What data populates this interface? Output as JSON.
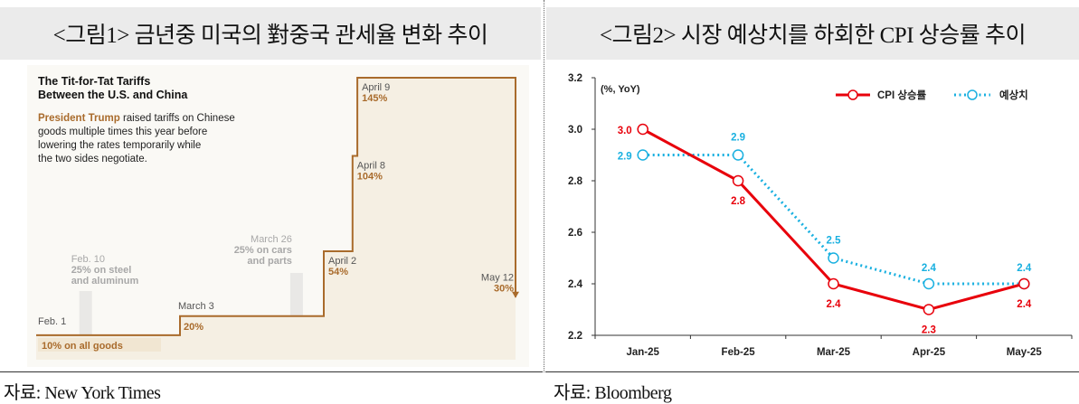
{
  "left_panel": {
    "title": "<그림1> 금년중 미국의 對중국 관세율 변화 추이",
    "source": "자료: New York Times",
    "heading_line1": "The Tit-for-Tat Tariffs",
    "heading_line2": "Between the U.S. and China",
    "desc_highlight": "President Trump",
    "desc_line1_rest": " raised tariffs on Chinese",
    "desc_line2": "goods multiple times this year before",
    "desc_line3": "lowering the rates temporarily while",
    "desc_line4": "the two sides negotiate."
  },
  "right_panel": {
    "title": "<그림2> 시장 예상치를 하회한 CPI 상승률 추이",
    "source": "자료: Bloomberg"
  },
  "colors": {
    "tariff": "#a96b2c",
    "cpi": "#e8000b",
    "forecast": "#19b0e0"
  },
  "chart_data": [
    {
      "type": "line",
      "subtype": "step",
      "unit_label": "",
      "points": [
        {
          "date_label": "Feb. 1",
          "rate_label": "10% on all goods",
          "value": 10,
          "date": "2025-02-01",
          "highlight": true
        },
        {
          "date_label": "Feb. 10",
          "rate_label": "25% on steel",
          "rate_label2": "and aluminum",
          "value": null,
          "date": "2025-02-10",
          "gray": true
        },
        {
          "date_label": "March 3",
          "rate_label": "20%",
          "value": 20,
          "date": "2025-03-03"
        },
        {
          "date_label": "March 26",
          "rate_label": "25% on cars",
          "rate_label2": "and parts",
          "value": null,
          "date": "2025-03-26",
          "gray": true
        },
        {
          "date_label": "April 2",
          "rate_label": "54%",
          "value": 54,
          "date": "2025-04-02"
        },
        {
          "date_label": "April 8",
          "rate_label": "104%",
          "value": 104,
          "date": "2025-04-08"
        },
        {
          "date_label": "April 9",
          "rate_label": "145%",
          "value": 145,
          "date": "2025-04-09"
        },
        {
          "date_label": "May 12",
          "rate_label": "30%",
          "value": 30,
          "date": "2025-05-12"
        }
      ]
    },
    {
      "type": "line",
      "unit_label": "(%, YoY)",
      "categories": [
        "Jan-25",
        "Feb-25",
        "Mar-25",
        "Apr-25",
        "May-25"
      ],
      "series": [
        {
          "name": "CPI 상승률",
          "values": [
            3.0,
            2.8,
            2.4,
            2.3,
            2.4
          ],
          "labels": [
            "3.0",
            "2.8",
            "2.4",
            "2.3",
            "2.4"
          ],
          "style": "solid",
          "color": "#e8000b"
        },
        {
          "name": "예상치",
          "values": [
            2.9,
            2.9,
            2.5,
            2.4,
            2.4
          ],
          "labels": [
            "2.9",
            "2.9",
            "2.5",
            "2.4",
            "2.4"
          ],
          "style": "dotted",
          "color": "#19b0e0"
        }
      ],
      "ylim": [
        2.2,
        3.2
      ],
      "yticks": [
        "2.2",
        "2.4",
        "2.6",
        "2.8",
        "3.0",
        "3.2"
      ],
      "grid": false,
      "legend_position": "top-right"
    }
  ]
}
